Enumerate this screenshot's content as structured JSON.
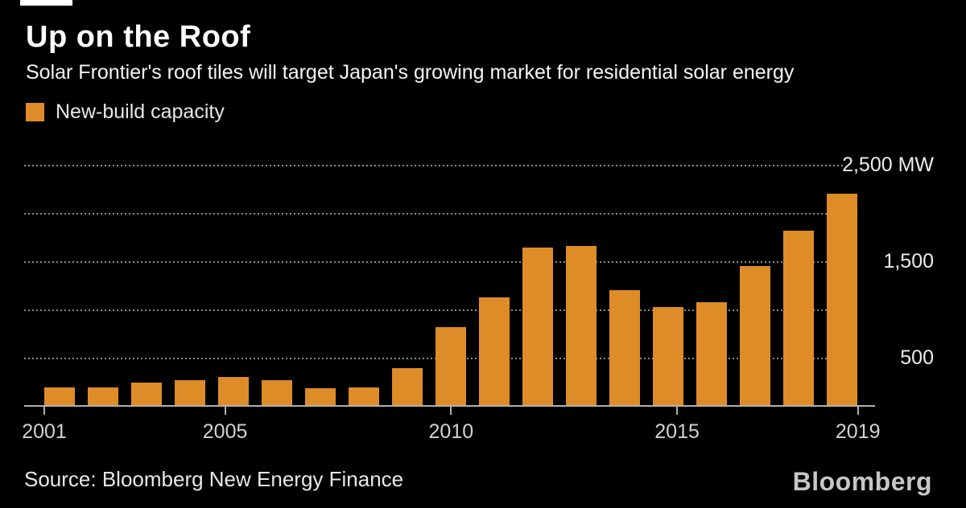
{
  "header": {
    "title": "Up on the Roof",
    "subtitle": "Solar Frontier's roof tiles will target Japan's growing market for residential solar energy"
  },
  "legend": {
    "label": "New-build capacity"
  },
  "footer": {
    "source": "Source: Bloomberg New Energy Finance",
    "logo": "Bloomberg"
  },
  "chart_data": {
    "type": "bar",
    "title": "Up on the Roof",
    "subtitle": "Solar Frontier's roof tiles will target Japan's growing market for residential solar energy",
    "series_name": "New-build capacity",
    "unit": "MW",
    "categories": [
      2001,
      2002,
      2003,
      2004,
      2005,
      2006,
      2007,
      2008,
      2009,
      2010,
      2011,
      2012,
      2013,
      2014,
      2015,
      2016,
      2017,
      2018,
      2019
    ],
    "values": [
      185,
      185,
      235,
      260,
      290,
      255,
      175,
      185,
      385,
      805,
      1115,
      1630,
      1650,
      1190,
      1020,
      1070,
      1445,
      1810,
      2195
    ],
    "ylim": [
      0,
      2500
    ],
    "gridline_interval": 500,
    "yticks_labeled": [
      {
        "value": 2500,
        "label": "2,500 MW"
      },
      {
        "value": 1500,
        "label": "1,500"
      },
      {
        "value": 500,
        "label": "500"
      }
    ],
    "xticks": [
      "2001",
      "2005",
      "2010",
      "2015",
      "2019"
    ],
    "grid": "horizontal-dotted",
    "legend_position": "top-left",
    "colors": {
      "bar": "#DE8C28",
      "background": "#000000",
      "gridline": "#8A8A8A",
      "axis": "#B0B0B0",
      "title": "#FFFFFF"
    }
  }
}
